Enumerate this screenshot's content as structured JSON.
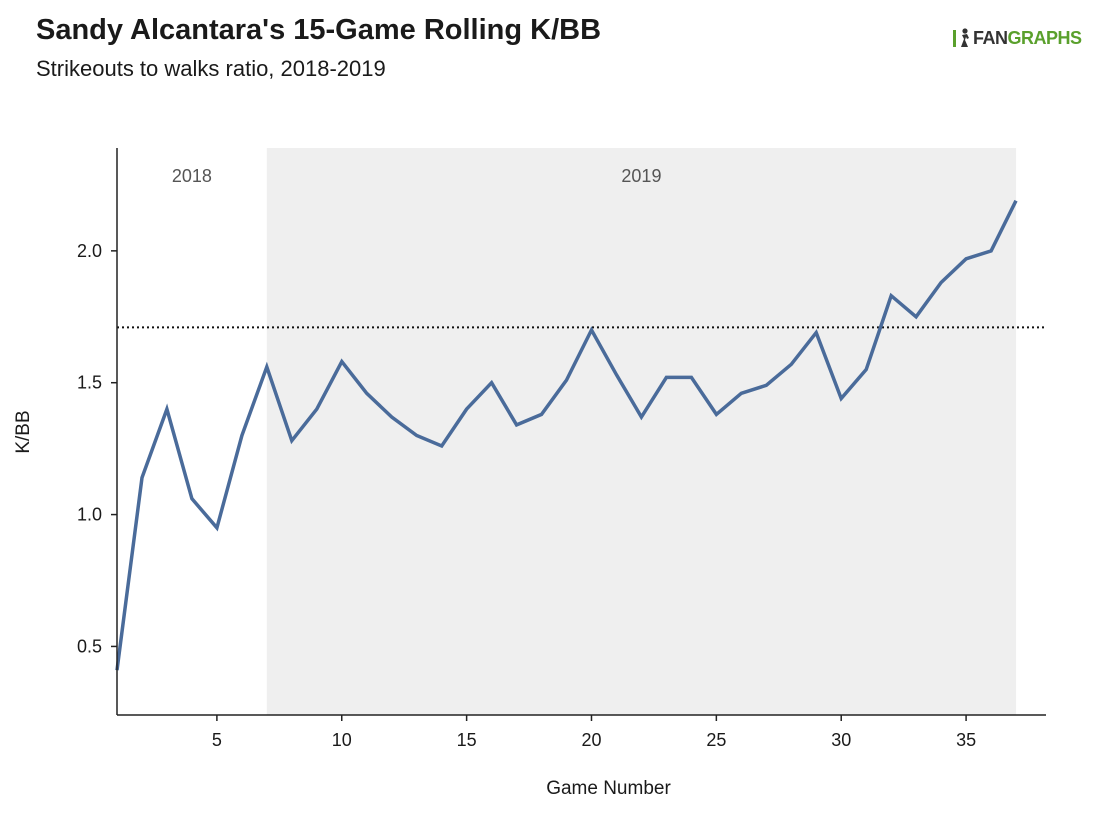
{
  "header": {
    "title": "Sandy Alcantara's 15-Game Rolling K/BB",
    "subtitle": "Strikeouts to walks ratio, 2018-2019"
  },
  "logo": {
    "prefix": "FAN",
    "suffix": "GRAPHS",
    "icon": "fangraphs-logo-icon",
    "color": "#5aa02c"
  },
  "chart_data": {
    "type": "line",
    "title": "Sandy Alcantara's 15-Game Rolling K/BB",
    "subtitle": "Strikeouts to walks ratio, 2018-2019",
    "xlabel": "Game Number",
    "ylabel": "K/BB",
    "xlim": [
      1,
      38.2
    ],
    "ylim": [
      0.24,
      2.39
    ],
    "xticks": [
      5,
      10,
      15,
      20,
      25,
      30,
      35
    ],
    "yticks": [
      0.5,
      1.0,
      1.5,
      2.0
    ],
    "ytick_labels": [
      "0.5",
      "1.0",
      "1.5",
      "2.0"
    ],
    "grid": false,
    "line_color": "#4a6b9a",
    "reference_line": {
      "y": 1.71,
      "style": "dotted"
    },
    "regions": [
      {
        "label": "2018",
        "from": 1,
        "to": 7,
        "fill": "#ffffff"
      },
      {
        "label": "2019",
        "from": 7,
        "to": 37,
        "fill": "#efefef"
      }
    ],
    "series": [
      {
        "x": [
          1,
          2,
          3,
          4,
          5,
          6,
          7,
          8,
          9,
          10,
          11,
          12,
          13,
          14,
          15,
          16,
          17,
          18,
          19,
          20,
          21,
          22,
          23,
          24,
          25,
          26,
          27,
          28,
          29,
          30,
          31,
          32,
          33,
          34,
          35,
          36,
          37
        ],
        "values": [
          0.41,
          1.14,
          1.4,
          1.06,
          0.95,
          1.3,
          1.56,
          1.28,
          1.4,
          1.58,
          1.46,
          1.37,
          1.3,
          1.26,
          1.4,
          1.5,
          1.34,
          1.38,
          1.51,
          1.7,
          1.53,
          1.37,
          1.52,
          1.52,
          1.38,
          1.46,
          1.49,
          1.57,
          1.69,
          1.44,
          1.55,
          1.83,
          1.75,
          1.88,
          1.97,
          2.0,
          2.19
        ]
      }
    ]
  }
}
